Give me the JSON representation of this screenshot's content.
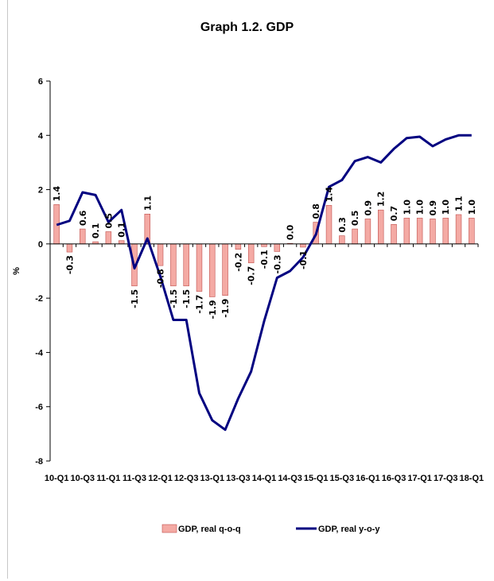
{
  "chart_data": {
    "type": "bar",
    "title": "Graph 1.2. GDP",
    "xlabel": "",
    "ylabel": "%",
    "ylim": [
      -8,
      6
    ],
    "yticks": [
      -8,
      -6,
      -4,
      -2,
      0,
      2,
      4,
      6
    ],
    "grid": false,
    "legend_position": "bottom",
    "categories": [
      "10-Q1",
      "10-Q2",
      "10-Q3",
      "10-Q4",
      "11-Q1",
      "11-Q2",
      "11-Q3",
      "11-Q4",
      "12-Q1",
      "12-Q2",
      "12-Q3",
      "12-Q4",
      "13-Q1",
      "13-Q2",
      "13-Q3",
      "13-Q4",
      "14-Q1",
      "14-Q2",
      "14-Q3",
      "14-Q4",
      "15-Q1",
      "15-Q2",
      "15-Q3",
      "15-Q4",
      "16-Q1",
      "16-Q2",
      "16-Q3",
      "16-Q4",
      "17-Q1",
      "17-Q2",
      "17-Q3",
      "17-Q4",
      "18-Q1"
    ],
    "xtick_labels": [
      "10-Q1",
      "10-Q3",
      "11-Q1",
      "11-Q3",
      "12-Q1",
      "12-Q3",
      "13-Q1",
      "13-Q3",
      "14-Q1",
      "14-Q3",
      "15-Q1",
      "15-Q3",
      "16-Q1",
      "16-Q3",
      "17-Q1",
      "17-Q3",
      "18-Q1"
    ],
    "series": [
      {
        "name": "GDP, real q-o-q",
        "type": "bar",
        "color": "#f4aaa4",
        "edge_color": "#c0504d",
        "values": [
          1.45,
          -0.3,
          0.55,
          0.08,
          0.45,
          0.12,
          -1.55,
          1.1,
          -0.8,
          -1.55,
          -1.55,
          -1.75,
          -1.95,
          -1.9,
          -0.2,
          -0.7,
          -0.1,
          -0.28,
          0.02,
          -0.12,
          0.8,
          1.42,
          0.3,
          0.55,
          0.92,
          1.25,
          0.72,
          0.95,
          0.95,
          0.92,
          0.95,
          1.08,
          0.95
        ]
      },
      {
        "name": "GDP, real y-o-y",
        "type": "line",
        "color": "#000080",
        "values": [
          0.7,
          0.85,
          1.9,
          1.8,
          0.8,
          1.25,
          -0.9,
          0.2,
          -1.2,
          -2.8,
          -2.8,
          -5.5,
          -6.5,
          -6.85,
          -5.7,
          -4.7,
          -2.85,
          -1.25,
          -1.0,
          -0.5,
          0.35,
          2.1,
          2.35,
          3.05,
          3.2,
          3.0,
          3.5,
          3.9,
          3.95,
          3.6,
          3.85,
          4.0,
          4.0
        ]
      }
    ],
    "data_labels": [
      {
        "i": 0,
        "text": "1.4"
      },
      {
        "i": 1,
        "text": "-0.3"
      },
      {
        "i": 2,
        "text": "0.6"
      },
      {
        "i": 3,
        "text": "0.1"
      },
      {
        "i": 4,
        "text": "0.5"
      },
      {
        "i": 5,
        "text": "0.1"
      },
      {
        "i": 6,
        "text": "-1.5"
      },
      {
        "i": 7,
        "text": "1.1"
      },
      {
        "i": 8,
        "text": "-0.8"
      },
      {
        "i": 9,
        "text": "-1.5"
      },
      {
        "i": 10,
        "text": "-1.5"
      },
      {
        "i": 11,
        "text": "-1.7"
      },
      {
        "i": 12,
        "text": "-1.9"
      },
      {
        "i": 13,
        "text": "-1.9"
      },
      {
        "i": 14,
        "text": "-0.2"
      },
      {
        "i": 15,
        "text": "-0.7"
      },
      {
        "i": 16,
        "text": "-0.1"
      },
      {
        "i": 17,
        "text": "-0.3"
      },
      {
        "i": 18,
        "text": "0.0"
      },
      {
        "i": 19,
        "text": "-0.1"
      },
      {
        "i": 20,
        "text": "0.8"
      },
      {
        "i": 21,
        "text": "1.4"
      },
      {
        "i": 22,
        "text": "0.3"
      },
      {
        "i": 23,
        "text": "0.5"
      },
      {
        "i": 24,
        "text": "0.9"
      },
      {
        "i": 25,
        "text": "1.2"
      },
      {
        "i": 26,
        "text": "0.7"
      },
      {
        "i": 27,
        "text": "1.0"
      },
      {
        "i": 28,
        "text": "1.0"
      },
      {
        "i": 29,
        "text": "0.9"
      },
      {
        "i": 30,
        "text": "1.0"
      },
      {
        "i": 31,
        "text": "1.1"
      },
      {
        "i": 32,
        "text": "1.0"
      }
    ]
  }
}
